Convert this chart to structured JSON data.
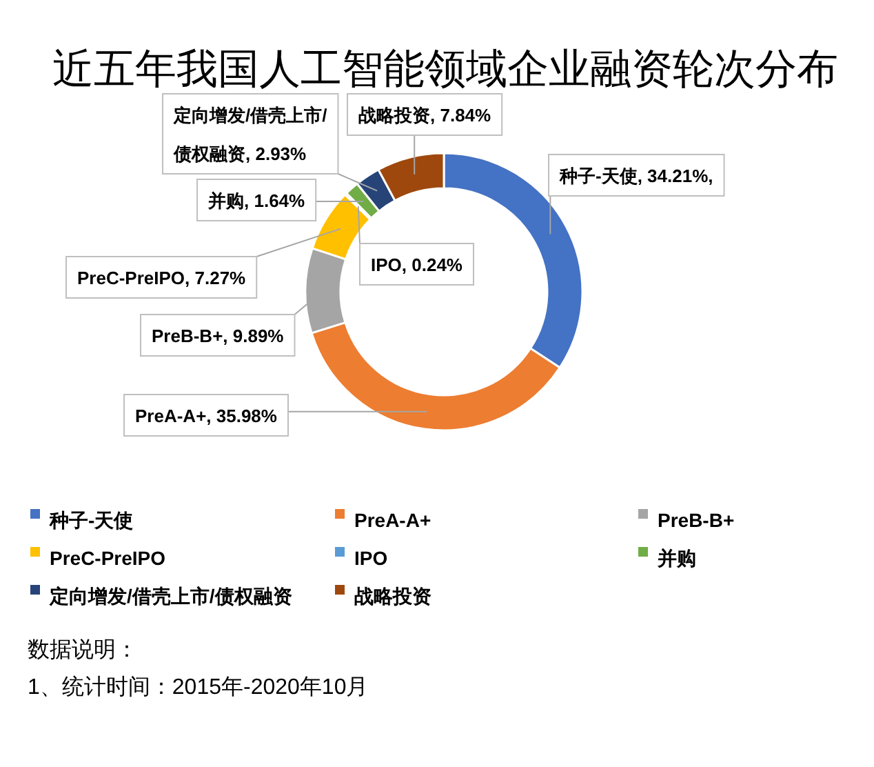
{
  "chart_data": {
    "type": "donut",
    "title": "近五年我国人工智能领域企业融资轮次分布",
    "categories": [
      "种子-天使",
      "PreA-A+",
      "PreB-B+",
      "PreC-PreIPO",
      "IPO",
      "并购",
      "定向增发/借壳上市/债权融资",
      "战略投资"
    ],
    "values": [
      34.21,
      35.98,
      9.89,
      7.27,
      0.24,
      1.64,
      2.93,
      7.84
    ],
    "colors": [
      "#4472c4",
      "#ed7d31",
      "#a5a5a5",
      "#ffc000",
      "#5b9bd5",
      "#70ad47",
      "#264478",
      "#9e480e"
    ],
    "value_labels": [
      "种子-天使, 34.21%,",
      "PreA-A+, 35.98%",
      "PreB-B+, 9.89%",
      "PreC-PreIPO, 7.27%",
      "IPO, 0.24%",
      "并购, 1.64%",
      "定向增发/借壳上市/债权融资, 2.93%",
      "战略投资, 7.84%"
    ],
    "legend": "bottom",
    "annotations": [
      "数据说明：",
      "1、统计时间：2015年-2020年10月"
    ]
  }
}
